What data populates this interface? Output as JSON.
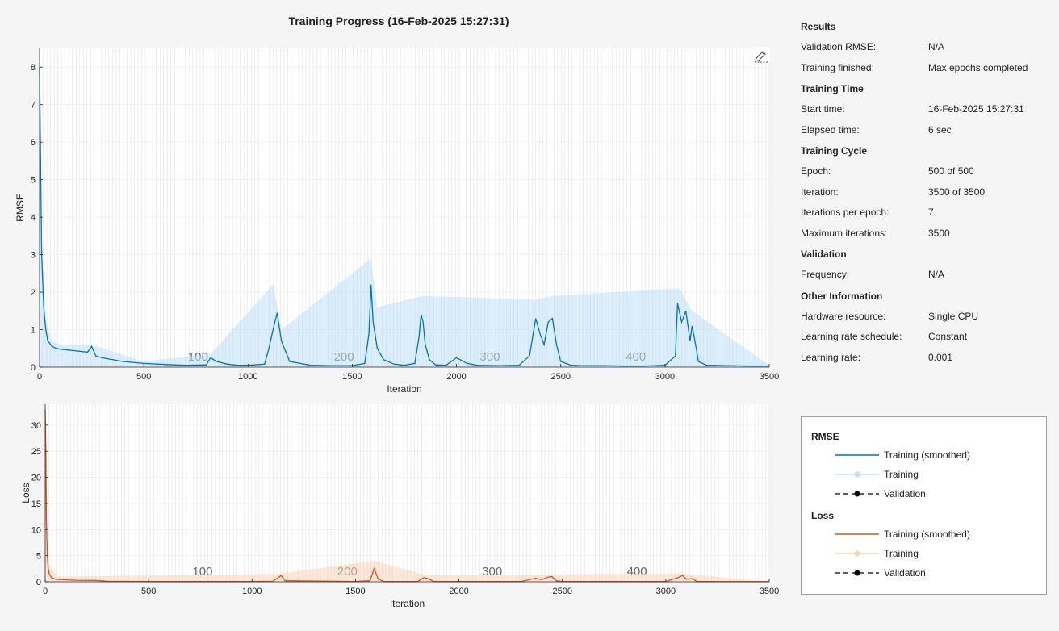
{
  "title": "Training Progress (16-Feb-2025 15:27:31)",
  "chart_data": [
    {
      "type": "line",
      "ylabel": "RMSE",
      "xlabel": "Iteration",
      "xlim": [
        0,
        3500
      ],
      "ylim": [
        0,
        8.5
      ],
      "xticks": [
        0,
        500,
        1000,
        1500,
        2000,
        2500,
        3000,
        3500
      ],
      "yticks": [
        0,
        1,
        2,
        3,
        4,
        5,
        6,
        7,
        8
      ],
      "epoch_markers": [
        {
          "label": "100",
          "x": 700
        },
        {
          "label": "200",
          "x": 1400
        },
        {
          "label": "300",
          "x": 2100
        },
        {
          "label": "400",
          "x": 2800
        }
      ],
      "series": [
        {
          "name": "Training (smoothed)",
          "color": "#0072bd",
          "x": [
            0,
            5,
            10,
            20,
            30,
            40,
            60,
            80,
            100,
            150,
            200,
            230,
            250,
            270,
            300,
            400,
            500,
            600,
            700,
            800,
            820,
            850,
            900,
            950,
            1000,
            1080,
            1100,
            1120,
            1140,
            1160,
            1200,
            1250,
            1300,
            1400,
            1500,
            1560,
            1580,
            1590,
            1600,
            1620,
            1650,
            1700,
            1750,
            1800,
            1820,
            1830,
            1840,
            1850,
            1870,
            1900,
            1950,
            2000,
            2050,
            2100,
            2200,
            2300,
            2350,
            2380,
            2400,
            2420,
            2440,
            2460,
            2480,
            2500,
            2550,
            2600,
            2700,
            2800,
            2900,
            3000,
            3050,
            3060,
            3080,
            3100,
            3120,
            3130,
            3140,
            3150,
            3160,
            3200,
            3300,
            3400,
            3500
          ],
          "y": [
            8.0,
            5.5,
            3.0,
            1.6,
            1.0,
            0.7,
            0.55,
            0.5,
            0.48,
            0.45,
            0.42,
            0.4,
            0.55,
            0.3,
            0.25,
            0.15,
            0.1,
            0.07,
            0.05,
            0.06,
            0.25,
            0.15,
            0.08,
            0.05,
            0.05,
            0.08,
            0.5,
            1.0,
            1.45,
            0.7,
            0.15,
            0.1,
            0.05,
            0.04,
            0.04,
            0.1,
            0.9,
            2.2,
            1.2,
            0.5,
            0.2,
            0.08,
            0.05,
            0.1,
            0.8,
            1.4,
            1.2,
            0.6,
            0.2,
            0.06,
            0.05,
            0.25,
            0.1,
            0.05,
            0.04,
            0.05,
            0.3,
            1.3,
            0.9,
            0.6,
            1.2,
            1.3,
            0.6,
            0.15,
            0.05,
            0.04,
            0.04,
            0.03,
            0.03,
            0.05,
            0.3,
            1.7,
            1.2,
            1.5,
            0.7,
            1.1,
            0.8,
            0.5,
            0.15,
            0.05,
            0.04,
            0.03,
            0.03
          ]
        },
        {
          "name": "Training",
          "color": "#bfdff7",
          "x": [
            0,
            10,
            30,
            60,
            100,
            250,
            500,
            820,
            1120,
            1160,
            1590,
            1620,
            1840,
            2380,
            2460,
            3070,
            3130,
            3500
          ],
          "y": [
            8.3,
            3.5,
            1.3,
            0.7,
            0.6,
            0.6,
            0.15,
            0.35,
            2.2,
            1.0,
            2.9,
            1.6,
            1.9,
            1.8,
            1.9,
            2.1,
            1.5,
            0.05
          ]
        }
      ]
    },
    {
      "type": "line",
      "ylabel": "Loss",
      "xlabel": "Iteration",
      "xlim": [
        0,
        3500
      ],
      "ylim": [
        0,
        34
      ],
      "xticks": [
        0,
        500,
        1000,
        1500,
        2000,
        2500,
        3000,
        3500
      ],
      "yticks": [
        0,
        5,
        10,
        15,
        20,
        25,
        30
      ],
      "epoch_markers": [
        {
          "label": "100",
          "x": 700
        },
        {
          "label": "200",
          "x": 1400
        },
        {
          "label": "300",
          "x": 2100
        },
        {
          "label": "400",
          "x": 2800
        }
      ],
      "series": [
        {
          "name": "Training (smoothed)",
          "color": "#d95319",
          "x": [
            0,
            3,
            6,
            10,
            15,
            20,
            30,
            50,
            80,
            150,
            250,
            300,
            500,
            1000,
            1100,
            1120,
            1140,
            1160,
            1500,
            1570,
            1590,
            1610,
            1640,
            1800,
            1830,
            1850,
            1880,
            2300,
            2370,
            2400,
            2430,
            2450,
            2470,
            2500,
            3000,
            3060,
            3080,
            3100,
            3130,
            3150,
            3200,
            3500
          ],
          "y": [
            33,
            25,
            12,
            5,
            2.5,
            1.5,
            0.8,
            0.5,
            0.4,
            0.3,
            0.25,
            0.1,
            0.05,
            0.05,
            0.1,
            0.6,
            1.2,
            0.2,
            0.05,
            0.2,
            2.5,
            0.5,
            0.05,
            0.05,
            0.8,
            0.6,
            0.05,
            0.05,
            0.7,
            0.4,
            0.9,
            1.0,
            0.2,
            0.05,
            0.05,
            0.8,
            1.2,
            0.5,
            0.6,
            0.05,
            0.04,
            0.03
          ]
        },
        {
          "name": "Training",
          "color": "#f9d3b8",
          "x": [
            0,
            10,
            20,
            60,
            1120,
            1590,
            1840,
            2440,
            3070,
            3500
          ],
          "y": [
            34,
            8,
            3,
            1,
            1.5,
            4.0,
            1.3,
            1.4,
            1.6,
            0.05
          ]
        }
      ]
    }
  ],
  "info": {
    "sections": [
      {
        "title": "Results",
        "rows": [
          [
            "Validation RMSE:",
            "N/A"
          ],
          [
            "Training finished:",
            "Max epochs completed"
          ]
        ]
      },
      {
        "title": "Training Time",
        "rows": [
          [
            "Start time:",
            "16-Feb-2025 15:27:31"
          ],
          [
            "Elapsed time:",
            "6 sec"
          ]
        ]
      },
      {
        "title": "Training Cycle",
        "rows": [
          [
            "Epoch:",
            "500 of 500"
          ],
          [
            "Iteration:",
            "3500 of 3500"
          ],
          [
            "Iterations per epoch:",
            "7"
          ],
          [
            "Maximum iterations:",
            "3500"
          ]
        ]
      },
      {
        "title": "Validation",
        "rows": [
          [
            "Frequency:",
            "N/A"
          ]
        ]
      },
      {
        "title": "Other Information",
        "rows": [
          [
            "Hardware resource:",
            "Single CPU"
          ],
          [
            "Learning rate schedule:",
            "Constant"
          ],
          [
            "Learning rate:",
            "0.001"
          ]
        ]
      }
    ]
  },
  "legend": {
    "groups": [
      {
        "title": "RMSE",
        "items": [
          {
            "label": "Training (smoothed)",
            "style": "line",
            "color": "#0072bd"
          },
          {
            "label": "Training",
            "style": "light-dot",
            "color": "#bfdff7"
          },
          {
            "label": "Validation",
            "style": "dash-dot",
            "color": "#000000"
          }
        ]
      },
      {
        "title": "Loss",
        "items": [
          {
            "label": "Training (smoothed)",
            "style": "line",
            "color": "#d95319"
          },
          {
            "label": "Training",
            "style": "light-dot",
            "color": "#f9d3b8"
          },
          {
            "label": "Validation",
            "style": "dash-dot",
            "color": "#000000"
          }
        ]
      }
    ]
  }
}
